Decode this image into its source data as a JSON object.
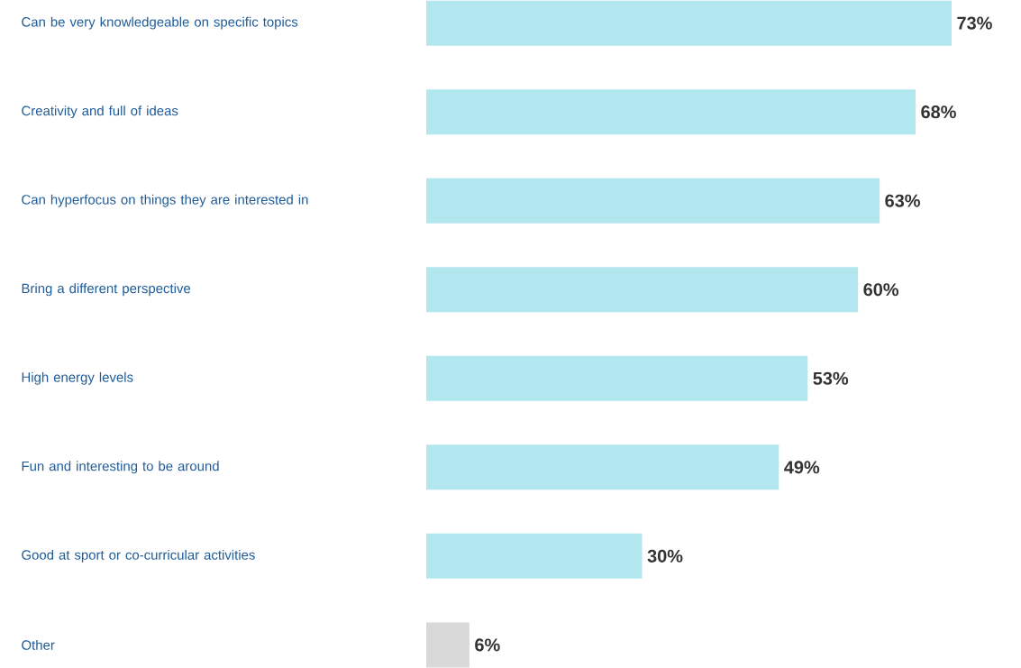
{
  "chart_data": {
    "type": "bar",
    "orientation": "horizontal",
    "categories": [
      "Can be very knowledgeable on specific topics",
      "Creativity and full of ideas",
      "Can hyperfocus on things they are interested in",
      "Bring a different perspective",
      "High energy levels",
      "Fun and interesting to be around",
      "Good at sport or co-curricular activities",
      "Other"
    ],
    "values": [
      73,
      68,
      63,
      60,
      53,
      49,
      30,
      6
    ],
    "colors": [
      "#b3e7f0",
      "#b3e7f0",
      "#b3e7f0",
      "#b3e7f0",
      "#b3e7f0",
      "#b3e7f0",
      "#b3e7f0",
      "#d9d9d9"
    ],
    "value_labels": [
      "73%",
      "68%",
      "63%",
      "60%",
      "53%",
      "49%",
      "30%",
      "6%"
    ]
  }
}
